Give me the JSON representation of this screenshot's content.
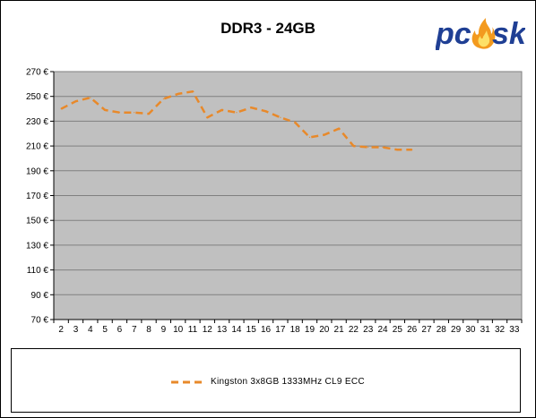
{
  "chart_data": {
    "type": "line",
    "title": "DDR3 - 24GB",
    "xlabel": "",
    "ylabel": "",
    "x": [
      2,
      3,
      4,
      5,
      6,
      7,
      8,
      9,
      10,
      11,
      12,
      13,
      14,
      15,
      16,
      17,
      18,
      19,
      20,
      21,
      22,
      23,
      24,
      25,
      26
    ],
    "xticks": [
      "2",
      "3",
      "4",
      "5",
      "6",
      "7",
      "8",
      "9",
      "10",
      "11",
      "12",
      "13",
      "14",
      "15",
      "16",
      "17",
      "18",
      "19",
      "20",
      "21",
      "22",
      "23",
      "24",
      "25",
      "26",
      "27",
      "28",
      "29",
      "30",
      "31",
      "32",
      "33"
    ],
    "xlim": [
      1.5,
      33.5
    ],
    "ylim": [
      70,
      270
    ],
    "yticks": [
      "70 €",
      "90 €",
      "110 €",
      "130 €",
      "150 €",
      "170 €",
      "190 €",
      "210 €",
      "230 €",
      "250 €",
      "270 €"
    ],
    "series": [
      {
        "name": "Kingston 3x8GB 1333MHz CL9 ECC",
        "color": "#e8892a",
        "style": "dashed",
        "values": [
          240,
          246,
          249,
          239,
          237,
          237,
          236,
          248,
          252,
          254,
          233,
          239,
          237,
          241,
          238,
          233,
          229,
          217,
          219,
          224,
          210,
          209,
          209,
          207,
          207
        ]
      }
    ],
    "plot_background": "#c0c0c0",
    "grid": true,
    "legend": "bottom"
  },
  "logo": {
    "text_left": "pc",
    "text_right": "sk"
  }
}
